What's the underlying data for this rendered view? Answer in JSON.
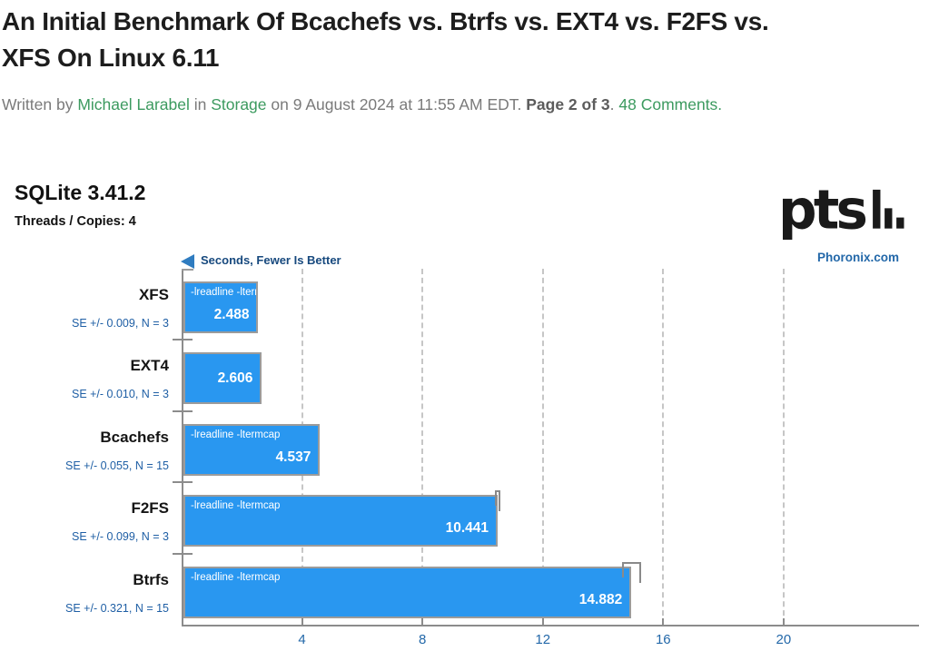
{
  "article": {
    "title_line1": "An Initial Benchmark Of Bcachefs vs. Btrfs vs. EXT4 vs. F2FS vs.",
    "title_line2": "XFS On Linux 6.11",
    "byline": {
      "written_by": "Written by ",
      "author": "Michael Larabel",
      "in_word": " in ",
      "category": "Storage",
      "date_text": " on 9 August 2024 at 11:55 AM EDT. ",
      "page_info": "Page 2 of 3",
      "separator": ". ",
      "comments": "48 Comments."
    }
  },
  "chart": {
    "heading": "SQLite 3.41.2",
    "subheading": "Threads / Copies: 4",
    "unit_note": "Seconds, Fewer Is Better",
    "watermark": "Phoronix.com",
    "logo_text": "pts"
  },
  "chart_data": {
    "type": "bar",
    "orientation": "horizontal",
    "title": "SQLite 3.41.2",
    "subtitle": "Threads / Copies: 4",
    "xlabel": "Seconds",
    "better_direction": "fewer-is-better",
    "categories": [
      "XFS",
      "EXT4",
      "Bcachefs",
      "F2FS",
      "Btrfs"
    ],
    "values": [
      2.488,
      2.606,
      4.537,
      10.441,
      14.882
    ],
    "display_values": [
      "2.488",
      "2.606",
      "4.537",
      "10.441",
      "14.882"
    ],
    "se_labels": [
      "SE +/- 0.009, N = 3",
      "SE +/- 0.010, N = 3",
      "SE +/- 0.055, N = 15",
      "SE +/- 0.099, N = 3",
      "SE +/- 0.321, N = 15"
    ],
    "standard_errors": [
      0.009,
      0.01,
      0.055,
      0.099,
      0.321
    ],
    "bar_annotations": [
      "-lreadline -ltermcap",
      "",
      "-lreadline -ltermcap",
      "-lreadline -ltermcap",
      "-lreadline -ltermcap"
    ],
    "xlim": [
      0,
      24.5
    ],
    "xticks": [
      4,
      8,
      12,
      16,
      20
    ],
    "grid": "vertical-dashed",
    "legend": "none",
    "colors": {
      "bar_fill": "#2997F0",
      "bar_border": "#9B9B9B",
      "axis": "#8C8C8C",
      "grid": "#C6C6C6",
      "tick_label": "#2368A9",
      "se_label": "#1F5FA5",
      "category_label": "#151515",
      "unit_note": "#17497E",
      "watermark": "#2368A9",
      "link_green": "#3C9A5F"
    }
  }
}
